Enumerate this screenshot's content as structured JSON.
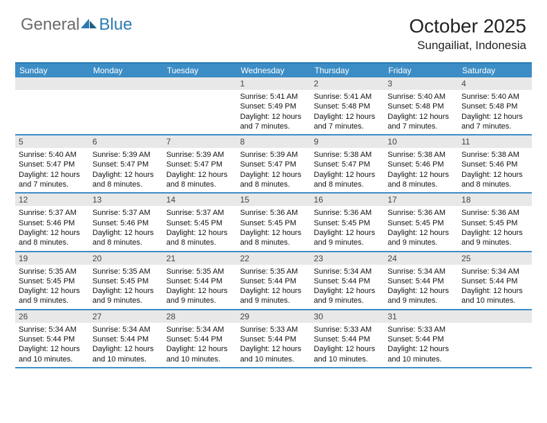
{
  "logo": {
    "text1": "General",
    "text2": "Blue"
  },
  "title": "October 2025",
  "location": "Sungailiat, Indonesia",
  "colors": {
    "header_bg": "#3c8dc5",
    "header_text": "#ffffff",
    "border": "#2a7ab0",
    "daynum_bg": "#e8e8e8",
    "text": "#111111",
    "logo_gray": "#6a6a6a",
    "logo_blue": "#2a7ab0"
  },
  "day_headers": [
    "Sunday",
    "Monday",
    "Tuesday",
    "Wednesday",
    "Thursday",
    "Friday",
    "Saturday"
  ],
  "weeks": [
    [
      {
        "n": "",
        "sunrise": "",
        "sunset": "",
        "daylight": ""
      },
      {
        "n": "",
        "sunrise": "",
        "sunset": "",
        "daylight": ""
      },
      {
        "n": "",
        "sunrise": "",
        "sunset": "",
        "daylight": ""
      },
      {
        "n": "1",
        "sunrise": "5:41 AM",
        "sunset": "5:49 PM",
        "daylight": "12 hours and 7 minutes."
      },
      {
        "n": "2",
        "sunrise": "5:41 AM",
        "sunset": "5:48 PM",
        "daylight": "12 hours and 7 minutes."
      },
      {
        "n": "3",
        "sunrise": "5:40 AM",
        "sunset": "5:48 PM",
        "daylight": "12 hours and 7 minutes."
      },
      {
        "n": "4",
        "sunrise": "5:40 AM",
        "sunset": "5:48 PM",
        "daylight": "12 hours and 7 minutes."
      }
    ],
    [
      {
        "n": "5",
        "sunrise": "5:40 AM",
        "sunset": "5:47 PM",
        "daylight": "12 hours and 7 minutes."
      },
      {
        "n": "6",
        "sunrise": "5:39 AM",
        "sunset": "5:47 PM",
        "daylight": "12 hours and 8 minutes."
      },
      {
        "n": "7",
        "sunrise": "5:39 AM",
        "sunset": "5:47 PM",
        "daylight": "12 hours and 8 minutes."
      },
      {
        "n": "8",
        "sunrise": "5:39 AM",
        "sunset": "5:47 PM",
        "daylight": "12 hours and 8 minutes."
      },
      {
        "n": "9",
        "sunrise": "5:38 AM",
        "sunset": "5:47 PM",
        "daylight": "12 hours and 8 minutes."
      },
      {
        "n": "10",
        "sunrise": "5:38 AM",
        "sunset": "5:46 PM",
        "daylight": "12 hours and 8 minutes."
      },
      {
        "n": "11",
        "sunrise": "5:38 AM",
        "sunset": "5:46 PM",
        "daylight": "12 hours and 8 minutes."
      }
    ],
    [
      {
        "n": "12",
        "sunrise": "5:37 AM",
        "sunset": "5:46 PM",
        "daylight": "12 hours and 8 minutes."
      },
      {
        "n": "13",
        "sunrise": "5:37 AM",
        "sunset": "5:46 PM",
        "daylight": "12 hours and 8 minutes."
      },
      {
        "n": "14",
        "sunrise": "5:37 AM",
        "sunset": "5:45 PM",
        "daylight": "12 hours and 8 minutes."
      },
      {
        "n": "15",
        "sunrise": "5:36 AM",
        "sunset": "5:45 PM",
        "daylight": "12 hours and 8 minutes."
      },
      {
        "n": "16",
        "sunrise": "5:36 AM",
        "sunset": "5:45 PM",
        "daylight": "12 hours and 9 minutes."
      },
      {
        "n": "17",
        "sunrise": "5:36 AM",
        "sunset": "5:45 PM",
        "daylight": "12 hours and 9 minutes."
      },
      {
        "n": "18",
        "sunrise": "5:36 AM",
        "sunset": "5:45 PM",
        "daylight": "12 hours and 9 minutes."
      }
    ],
    [
      {
        "n": "19",
        "sunrise": "5:35 AM",
        "sunset": "5:45 PM",
        "daylight": "12 hours and 9 minutes."
      },
      {
        "n": "20",
        "sunrise": "5:35 AM",
        "sunset": "5:45 PM",
        "daylight": "12 hours and 9 minutes."
      },
      {
        "n": "21",
        "sunrise": "5:35 AM",
        "sunset": "5:44 PM",
        "daylight": "12 hours and 9 minutes."
      },
      {
        "n": "22",
        "sunrise": "5:35 AM",
        "sunset": "5:44 PM",
        "daylight": "12 hours and 9 minutes."
      },
      {
        "n": "23",
        "sunrise": "5:34 AM",
        "sunset": "5:44 PM",
        "daylight": "12 hours and 9 minutes."
      },
      {
        "n": "24",
        "sunrise": "5:34 AM",
        "sunset": "5:44 PM",
        "daylight": "12 hours and 9 minutes."
      },
      {
        "n": "25",
        "sunrise": "5:34 AM",
        "sunset": "5:44 PM",
        "daylight": "12 hours and 10 minutes."
      }
    ],
    [
      {
        "n": "26",
        "sunrise": "5:34 AM",
        "sunset": "5:44 PM",
        "daylight": "12 hours and 10 minutes."
      },
      {
        "n": "27",
        "sunrise": "5:34 AM",
        "sunset": "5:44 PM",
        "daylight": "12 hours and 10 minutes."
      },
      {
        "n": "28",
        "sunrise": "5:34 AM",
        "sunset": "5:44 PM",
        "daylight": "12 hours and 10 minutes."
      },
      {
        "n": "29",
        "sunrise": "5:33 AM",
        "sunset": "5:44 PM",
        "daylight": "12 hours and 10 minutes."
      },
      {
        "n": "30",
        "sunrise": "5:33 AM",
        "sunset": "5:44 PM",
        "daylight": "12 hours and 10 minutes."
      },
      {
        "n": "31",
        "sunrise": "5:33 AM",
        "sunset": "5:44 PM",
        "daylight": "12 hours and 10 minutes."
      },
      {
        "n": "",
        "sunrise": "",
        "sunset": "",
        "daylight": ""
      }
    ]
  ],
  "labels": {
    "sunrise": "Sunrise:",
    "sunset": "Sunset:",
    "daylight": "Daylight:"
  }
}
